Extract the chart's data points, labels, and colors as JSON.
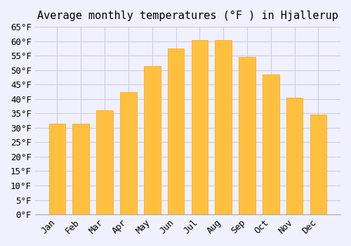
{
  "title": "Average monthly temperatures (°F ) in Hjallerup",
  "months": [
    "Jan",
    "Feb",
    "Mar",
    "Apr",
    "May",
    "Jun",
    "Jul",
    "Aug",
    "Sep",
    "Oct",
    "Nov",
    "Dec"
  ],
  "values": [
    31.5,
    31.5,
    36.0,
    42.5,
    51.5,
    57.5,
    60.5,
    60.5,
    54.5,
    48.5,
    40.5,
    34.5
  ],
  "bar_color": "#FFC040",
  "bar_edge_color": "#FFA500",
  "background_color": "#F0F0FF",
  "grid_color": "#CCCCDD",
  "ylim": [
    0,
    65
  ],
  "yticks": [
    0,
    5,
    10,
    15,
    20,
    25,
    30,
    35,
    40,
    45,
    50,
    55,
    60,
    65
  ],
  "title_fontsize": 11,
  "tick_fontsize": 9,
  "bar_width": 0.7
}
